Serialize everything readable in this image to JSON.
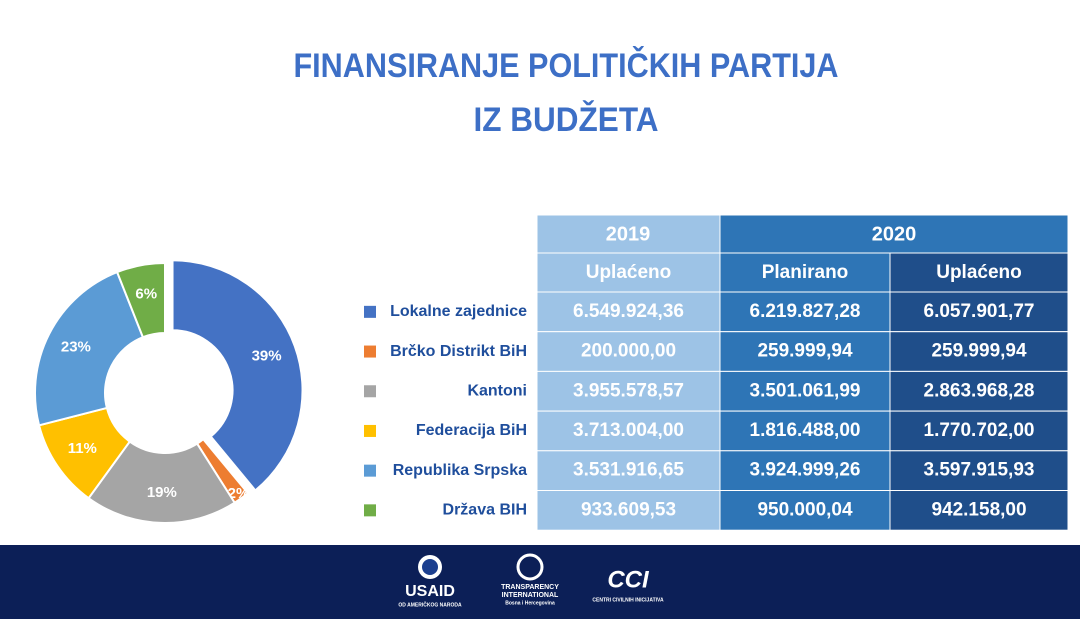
{
  "title": [
    "FINANSIRANJE POLITIČKIH PARTIJA",
    "IZ BUDŽETA"
  ],
  "chart_data": {
    "type": "pie",
    "donut": true,
    "categories": [
      "Lokalne zajednice",
      "Brčko Distrikt BiH",
      "Kantoni",
      "Federacija BiH",
      "Republika Srpska",
      "Država BIH"
    ],
    "values": [
      39,
      2,
      19,
      11,
      23,
      6
    ],
    "value_labels": [
      "39%",
      "2%",
      "19%",
      "11%",
      "23%",
      "6%"
    ],
    "colors": [
      "#4472c4",
      "#ed7d31",
      "#a5a5a5",
      "#ffc000",
      "#5b9bd5",
      "#70ad47"
    ]
  },
  "table": {
    "header": [
      [
        "2019",
        "2020"
      ],
      [
        "Uplaćeno",
        "Planirano",
        "Uplaćeno"
      ]
    ],
    "rows": [
      [
        "6.549.924,36",
        "6.219.827,28",
        "6.057.901,77"
      ],
      [
        "200.000,00",
        "259.999,94",
        "259.999,94"
      ],
      [
        "3.955.578,57",
        "3.501.061,99",
        "2.863.968,28"
      ],
      [
        "3.713.004,00",
        "1.816.488,00",
        "1.770.702,00"
      ],
      [
        "3.531.916,65",
        "3.924.999,26",
        "3.597.915,93"
      ],
      [
        "933.609,53",
        "950.000,04",
        "942.158,00"
      ]
    ]
  },
  "footer": {
    "usaid": [
      "USAID",
      "OD AMERIČKOG NARODA"
    ],
    "ti": [
      "TRANSPARENCY",
      "INTERNATIONAL",
      "Bosna i Hercegovina"
    ],
    "cci": [
      "CCI",
      "CENTRI CIVILNIH INICIJATIVA"
    ]
  }
}
